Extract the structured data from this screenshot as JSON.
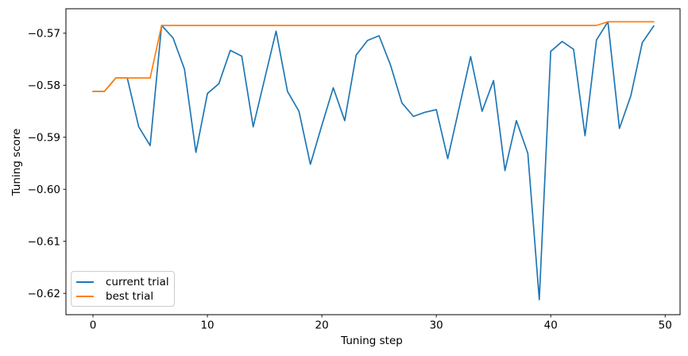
{
  "figure": {
    "background": "#ffffff"
  },
  "chart_data": {
    "type": "line",
    "title": "",
    "xlabel": "Tuning step",
    "ylabel": "Tuning score",
    "grid": false,
    "legend_position": "lower left",
    "xlim": [
      -2.36,
      51.3
    ],
    "ylim": [
      -0.6241,
      -0.5653
    ],
    "xticks": [
      0,
      10,
      20,
      30,
      40,
      50
    ],
    "yticks": [
      -0.57,
      -0.58,
      -0.59,
      -0.6,
      -0.61,
      -0.62
    ],
    "x": [
      0,
      1,
      2,
      3,
      4,
      5,
      6,
      7,
      8,
      9,
      10,
      11,
      12,
      13,
      14,
      15,
      16,
      17,
      18,
      19,
      20,
      21,
      22,
      23,
      24,
      25,
      26,
      27,
      28,
      29,
      30,
      31,
      32,
      33,
      34,
      35,
      36,
      37,
      38,
      39,
      40,
      41,
      42,
      43,
      44,
      45,
      46,
      47,
      48,
      49
    ],
    "series": [
      {
        "name": "current trial",
        "color": "#1f77b4",
        "values": [
          -0.5812,
          -0.5812,
          -0.5786,
          -0.5786,
          -0.588,
          -0.5916,
          -0.5685,
          -0.5709,
          -0.5769,
          -0.5929,
          -0.5816,
          -0.5797,
          -0.5733,
          -0.5744,
          -0.588,
          -0.5788,
          -0.5696,
          -0.5812,
          -0.585,
          -0.5952,
          -0.5877,
          -0.5805,
          -0.5868,
          -0.5742,
          -0.5714,
          -0.5705,
          -0.5761,
          -0.5834,
          -0.586,
          -0.5852,
          -0.5847,
          -0.5941,
          -0.5843,
          -0.5745,
          -0.585,
          -0.5791,
          -0.5964,
          -0.5868,
          -0.5931,
          -0.6212,
          -0.5735,
          -0.5716,
          -0.5731,
          -0.5897,
          -0.5713,
          -0.5678,
          -0.5883,
          -0.582,
          -0.5718,
          -0.5686
        ]
      },
      {
        "name": "best trial",
        "color": "#ff7f0e",
        "values": [
          -0.5812,
          -0.5812,
          -0.5786,
          -0.5786,
          -0.5786,
          -0.5786,
          -0.5685,
          -0.5685,
          -0.5685,
          -0.5685,
          -0.5685,
          -0.5685,
          -0.5685,
          -0.5685,
          -0.5685,
          -0.5685,
          -0.5685,
          -0.5685,
          -0.5685,
          -0.5685,
          -0.5685,
          -0.5685,
          -0.5685,
          -0.5685,
          -0.5685,
          -0.5685,
          -0.5685,
          -0.5685,
          -0.5685,
          -0.5685,
          -0.5685,
          -0.5685,
          -0.5685,
          -0.5685,
          -0.5685,
          -0.5685,
          -0.5685,
          -0.5685,
          -0.5685,
          -0.5685,
          -0.5685,
          -0.5685,
          -0.5685,
          -0.5685,
          -0.5685,
          -0.5678,
          -0.5678,
          -0.5678,
          -0.5678,
          -0.5678
        ]
      }
    ]
  }
}
